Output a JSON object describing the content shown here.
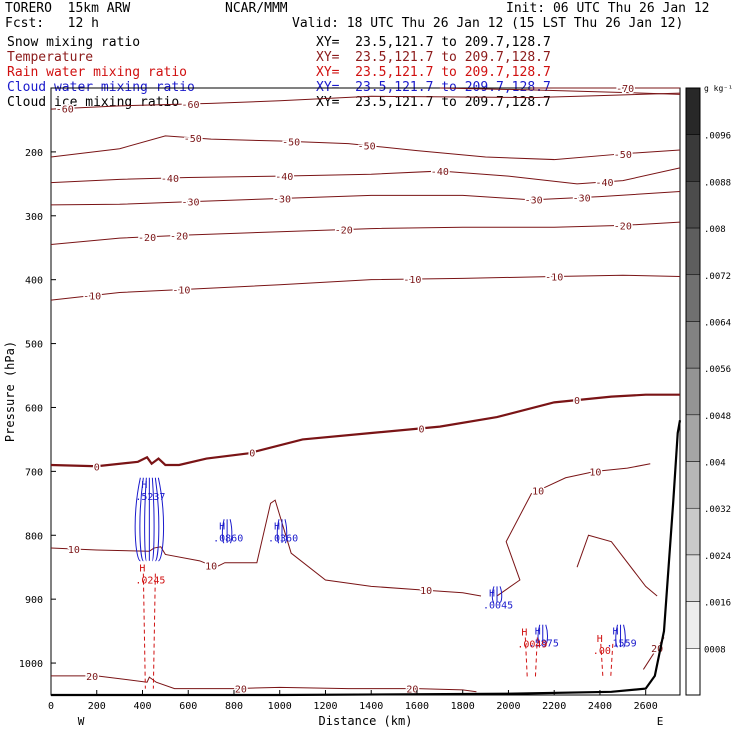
{
  "header": {
    "model": "TORERO  15km ARW",
    "org": "NCAR/MMM",
    "init": "Init: 06 UTC Thu 26 Jan 12",
    "fcst": "Fcst:   12 h",
    "valid": "Valid: 18 UTC Thu 26 Jan 12 (15 LST Thu 26 Jan 12)",
    "xy_text": "XY=  23.5,121.7 to 209.7,128.7"
  },
  "fields": [
    {
      "label": "Snow mixing ratio",
      "color": "#000000"
    },
    {
      "label": "Temperature",
      "color": "#8b1a1a"
    },
    {
      "label": "Rain water mixing ratio",
      "color": "#d01010"
    },
    {
      "label": "Cloud water mixing ratio",
      "color": "#1a1acc"
    },
    {
      "label": "Cloud ice mixing ratio",
      "color": "#000000"
    }
  ],
  "chart_data": {
    "type": "cross-section",
    "xlabel": "Distance (km)",
    "ylabel": "Pressure (hPa)",
    "xlim": [
      0,
      2750
    ],
    "ylim": [
      1050,
      100
    ],
    "x_ticks": [
      0,
      200,
      400,
      600,
      800,
      1000,
      1200,
      1400,
      1600,
      1800,
      2000,
      2200,
      2400,
      2600
    ],
    "y_ticks": [
      200,
      300,
      400,
      500,
      600,
      700,
      800,
      900,
      1000
    ],
    "y_tick_labels": [
      "200",
      "300",
      "400",
      "500",
      "600",
      "700",
      "800",
      "900",
      "1000"
    ],
    "x_end_labels": {
      "left": "W",
      "right": "E"
    },
    "colorbar": {
      "unit": "g kg⁻¹",
      "ticks": [
        "0008",
        ".0016",
        ".0024",
        ".0032",
        ".004",
        ".0048",
        ".0056",
        ".0064",
        ".0072",
        ".008",
        ".0088",
        ".0096"
      ]
    },
    "temperature_contours": [
      {
        "level": -60,
        "x": [
          0,
          300,
          700,
          1000,
          1400,
          1800,
          2100,
          2400,
          2750
        ],
        "p": [
          133,
          128,
          124,
          120,
          113,
          114,
          115,
          112,
          108
        ],
        "labels": [
          [
            60,
            -60
          ],
          [
            610,
            -60
          ]
        ]
      },
      {
        "level": -60,
        "x": [
          1700,
          2100,
          2500,
          2750
        ],
        "p": [
          100,
          103,
          107,
          110
        ],
        "labels": []
      },
      {
        "level": -70,
        "x": [
          2100,
          2400,
          2750
        ],
        "p": [
          100,
          100,
          100
        ],
        "labels": [
          [
            2510,
            -70
          ]
        ]
      },
      {
        "level": -50,
        "x": [
          0,
          300,
          500,
          700,
          1000,
          1300,
          1600,
          1900,
          2200,
          2500,
          2750
        ],
        "p": [
          208,
          195,
          175,
          180,
          183,
          187,
          198,
          208,
          212,
          203,
          197
        ],
        "labels": [
          [
            620,
            -50
          ],
          [
            1050,
            -50
          ],
          [
            1380,
            -50
          ],
          [
            2500,
            -50
          ]
        ]
      },
      {
        "level": -40,
        "x": [
          0,
          300,
          600,
          1000,
          1400,
          1700,
          2000,
          2300,
          2500,
          2750
        ],
        "p": [
          248,
          243,
          240,
          238,
          235,
          230,
          238,
          250,
          245,
          225
        ],
        "labels": [
          [
            520,
            -40
          ],
          [
            1020,
            -40
          ],
          [
            1700,
            -40
          ],
          [
            2420,
            -40
          ]
        ]
      },
      {
        "level": -30,
        "x": [
          0,
          300,
          600,
          1000,
          1400,
          1800,
          2100,
          2400,
          2750
        ],
        "p": [
          283,
          282,
          278,
          273,
          268,
          268,
          275,
          270,
          262
        ],
        "labels": [
          [
            610,
            -30
          ],
          [
            1010,
            -30
          ],
          [
            2110,
            -30
          ],
          [
            2320,
            -30
          ]
        ]
      },
      {
        "level": -20,
        "x": [
          0,
          300,
          600,
          1000,
          1400,
          1800,
          2200,
          2500,
          2750
        ],
        "p": [
          345,
          335,
          330,
          325,
          320,
          318,
          318,
          315,
          310
        ],
        "labels": [
          [
            420,
            -20
          ],
          [
            560,
            -20
          ],
          [
            1280,
            -20
          ],
          [
            2500,
            -20
          ]
        ]
      },
      {
        "level": -10,
        "x": [
          0,
          300,
          600,
          1000,
          1400,
          1800,
          2200,
          2500,
          2750
        ],
        "p": [
          432,
          420,
          415,
          408,
          400,
          398,
          395,
          393,
          395
        ],
        "labels": [
          [
            180,
            -10
          ],
          [
            570,
            -10
          ],
          [
            1580,
            -10
          ],
          [
            2200,
            -10
          ]
        ]
      },
      {
        "level": 0,
        "x": [
          0,
          200,
          380,
          420,
          440,
          470,
          500,
          560,
          680,
          860,
          1100,
          1400,
          1700,
          1950,
          2200,
          2450,
          2600,
          2750
        ],
        "p": [
          690,
          692,
          685,
          678,
          688,
          680,
          690,
          690,
          680,
          672,
          650,
          640,
          630,
          615,
          592,
          583,
          580,
          580
        ],
        "labels": [
          [
            200,
            0
          ],
          [
            880,
            0
          ],
          [
            1620,
            0
          ],
          [
            2300,
            0
          ]
        ],
        "thick": true
      },
      {
        "level": 10,
        "x": [
          0,
          200,
          430,
          450,
          480,
          500,
          650,
          720,
          760,
          900,
          960,
          980,
          1050,
          1200,
          1400,
          1600,
          1800,
          1880
        ],
        "p": [
          820,
          823,
          825,
          820,
          818,
          830,
          840,
          850,
          843,
          843,
          750,
          745,
          828,
          870,
          880,
          885,
          890,
          895
        ],
        "labels": [
          [
            100,
            10
          ],
          [
            700,
            10
          ],
          [
            1640,
            10
          ]
        ]
      },
      {
        "level": 10,
        "x": [
          1950,
          2050,
          1990,
          2100,
          2250,
          2380,
          2520,
          2620
        ],
        "p": [
          895,
          870,
          810,
          735,
          710,
          700,
          695,
          688
        ],
        "labels": [
          [
            2130,
            10
          ],
          [
            2380,
            10
          ]
        ]
      },
      {
        "level": 10,
        "x": [
          2300,
          2350,
          2450,
          2600,
          2650
        ],
        "p": [
          850,
          800,
          810,
          880,
          895
        ],
        "labels": []
      },
      {
        "level": 20,
        "x": [
          0,
          200,
          420,
          430,
          460,
          540,
          800,
          1000,
          1300,
          1600,
          1800,
          1860
        ],
        "p": [
          1020,
          1020,
          1030,
          1022,
          1030,
          1040,
          1040,
          1038,
          1040,
          1040,
          1042,
          1045
        ],
        "labels": [
          [
            180,
            20
          ],
          [
            830,
            20
          ],
          [
            1580,
            20
          ]
        ]
      },
      {
        "level": 20,
        "x": [
          2590,
          2680
        ],
        "p": [
          1010,
          960
        ],
        "labels": [
          [
            2650,
            20
          ]
        ]
      }
    ],
    "terrain": {
      "x": [
        0,
        1000,
        2000,
        2450,
        2600,
        2640,
        2680,
        2700,
        2720,
        2740,
        2750
      ],
      "p": [
        1050,
        1050,
        1048,
        1045,
        1040,
        1020,
        950,
        850,
        750,
        640,
        620
      ]
    },
    "cloud_water": [
      {
        "x": 430,
        "label_hi": "H",
        "value": ".5237",
        "col_p": [
          710,
          840
        ]
      },
      {
        "x": 770,
        "label_hi": "H",
        "value": ".0860",
        "col_p": [
          775,
          812
        ]
      },
      {
        "x": 1010,
        "label_hi": "H",
        "value": ".0360",
        "col_p": [
          775,
          812
        ]
      },
      {
        "x": 1950,
        "label_hi": "H",
        "value": ".0045",
        "col_p": [
          880,
          905
        ]
      },
      {
        "x": 2150,
        "label_hi": "H",
        "value": ".5875",
        "col_p": [
          940,
          970
        ]
      },
      {
        "x": 2490,
        "label_hi": "H",
        "value": ".1559",
        "col_p": [
          940,
          975
        ]
      }
    ],
    "rain_water": [
      {
        "x": 430,
        "label_hi": "H",
        "value": ".0245",
        "col_p": [
          860,
          1040
        ]
      },
      {
        "x": 2100,
        "label_hi": "H",
        "value": ".0049",
        "col_p": [
          960,
          1025
        ]
      },
      {
        "x": 2430,
        "label_hi": "H",
        "value": ".00",
        "col_p": [
          970,
          1020
        ]
      }
    ]
  }
}
